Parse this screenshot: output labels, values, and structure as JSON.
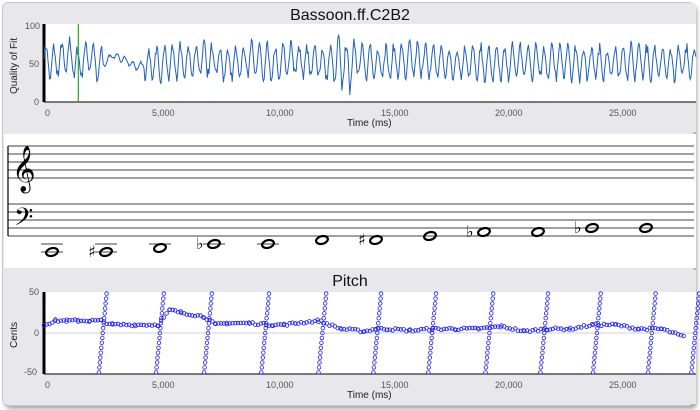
{
  "fit_chart": {
    "title": "Bassoon.ff.C2B2",
    "ylabel": "Quality of Fit",
    "xlabel": "Time (ms)",
    "y_ticks": [
      "100",
      "50",
      "0"
    ],
    "x_ticks": [
      "0",
      "5,000",
      "10,000",
      "15,000",
      "20,000",
      "25,000"
    ],
    "line_color": "#2060c0",
    "marker_color": "#22aa22",
    "marker_time_ms": 1500
  },
  "staff": {
    "notes": [
      {
        "label": "C2",
        "accidental": ""
      },
      {
        "label": "C#2",
        "accidental": "♯"
      },
      {
        "label": "D2",
        "accidental": ""
      },
      {
        "label": "Eb2",
        "accidental": "♭"
      },
      {
        "label": "E2",
        "accidental": ""
      },
      {
        "label": "F2",
        "accidental": ""
      },
      {
        "label": "F#2",
        "accidental": "♯"
      },
      {
        "label": "G2",
        "accidental": ""
      },
      {
        "label": "Ab2",
        "accidental": "♭"
      },
      {
        "label": "A2",
        "accidental": ""
      },
      {
        "label": "Bb2",
        "accidental": "♭"
      },
      {
        "label": "B2",
        "accidental": ""
      }
    ]
  },
  "pitch_chart": {
    "title": "Pitch",
    "ylabel": "Cents",
    "xlabel": "Time (ms)",
    "y_ticks": [
      "50",
      "0",
      "-50"
    ],
    "x_ticks": [
      "0",
      "5,000",
      "10,000",
      "15,000",
      "20,000",
      "25,000"
    ],
    "point_color": "#2020ee"
  },
  "chart_data": [
    {
      "type": "line",
      "title": "Bassoon.ff.C2B2",
      "xlabel": "Time (ms)",
      "ylabel": "Quality of Fit",
      "xlim": [
        0,
        28500
      ],
      "ylim": [
        0,
        100
      ],
      "grid": false,
      "series": [
        {
          "x": [
            0,
            500,
            1000,
            1500,
            2000,
            2500,
            3000,
            3500,
            4000,
            4500,
            5000,
            6000,
            7000,
            8000,
            9000,
            10000,
            11000,
            12000,
            13000,
            13500,
            14000,
            15000,
            16000,
            17000,
            18000,
            19000,
            20000,
            21000,
            22000,
            23000,
            24000,
            25000,
            26000,
            27000,
            28500
          ],
          "y": [
            55,
            50,
            62,
            48,
            58,
            45,
            60,
            55,
            45,
            48,
            50,
            52,
            55,
            50,
            55,
            50,
            55,
            50,
            48,
            50,
            52,
            50,
            55,
            52,
            50,
            50,
            50,
            52,
            50,
            52,
            50,
            50,
            52,
            50,
            52
          ]
        }
      ]
    },
    {
      "type": "scatter",
      "title": "Pitch",
      "xlabel": "Time (ms)",
      "ylabel": "Cents",
      "xlim": [
        0,
        28500
      ],
      "ylim": [
        -50,
        50
      ],
      "grid": false,
      "series": [
        {
          "x": [
            0,
            500,
            1000,
            1500,
            2000,
            2500,
            3000,
            4000,
            5000,
            5500,
            6000,
            7000,
            7500,
            8000,
            9000,
            10000,
            10500,
            11000,
            12000,
            13000,
            14000,
            14500,
            15000,
            16000,
            17000,
            18000,
            19000,
            20000,
            21000,
            22000,
            23000,
            24000,
            25000,
            26000,
            27000,
            28000
          ],
          "y": [
            10,
            15,
            15,
            15,
            15,
            15,
            10,
            10,
            10,
            28,
            25,
            20,
            10,
            12,
            12,
            10,
            10,
            12,
            15,
            5,
            2,
            5,
            5,
            3,
            5,
            5,
            5,
            8,
            2,
            5,
            5,
            10,
            10,
            5,
            5,
            -5
          ]
        }
      ]
    }
  ]
}
